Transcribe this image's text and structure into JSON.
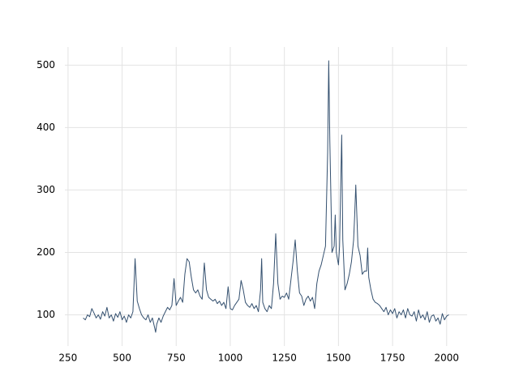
{
  "chart_data": {
    "type": "line",
    "x": [
      320,
      330,
      340,
      350,
      360,
      370,
      380,
      390,
      400,
      410,
      420,
      430,
      440,
      450,
      460,
      470,
      480,
      490,
      500,
      510,
      520,
      530,
      540,
      550,
      560,
      570,
      580,
      590,
      600,
      610,
      620,
      630,
      640,
      650,
      655,
      660,
      670,
      680,
      690,
      700,
      710,
      720,
      730,
      740,
      750,
      760,
      770,
      780,
      790,
      800,
      810,
      820,
      830,
      840,
      850,
      860,
      870,
      880,
      890,
      900,
      910,
      920,
      930,
      940,
      950,
      960,
      970,
      980,
      990,
      1000,
      1010,
      1020,
      1030,
      1040,
      1050,
      1060,
      1070,
      1080,
      1090,
      1100,
      1110,
      1120,
      1130,
      1140,
      1145,
      1150,
      1160,
      1170,
      1180,
      1190,
      1200,
      1210,
      1220,
      1230,
      1240,
      1250,
      1260,
      1270,
      1280,
      1290,
      1300,
      1310,
      1320,
      1330,
      1340,
      1350,
      1360,
      1370,
      1380,
      1390,
      1400,
      1410,
      1420,
      1430,
      1440,
      1450,
      1455,
      1460,
      1470,
      1480,
      1485,
      1490,
      1500,
      1505,
      1510,
      1515,
      1520,
      1530,
      1540,
      1550,
      1560,
      1570,
      1575,
      1580,
      1590,
      1600,
      1610,
      1620,
      1630,
      1635,
      1640,
      1650,
      1660,
      1670,
      1680,
      1690,
      1700,
      1710,
      1720,
      1730,
      1740,
      1750,
      1760,
      1770,
      1780,
      1790,
      1800,
      1810,
      1820,
      1830,
      1840,
      1850,
      1860,
      1870,
      1880,
      1890,
      1900,
      1910,
      1920,
      1930,
      1940,
      1950,
      1960,
      1970,
      1980,
      1990,
      2000,
      2010
    ],
    "series": [
      {
        "color": "#34506f",
        "values": [
          95,
          92,
          100,
          97,
          110,
          103,
          95,
          100,
          93,
          105,
          98,
          112,
          95,
          100,
          90,
          102,
          96,
          105,
          92,
          98,
          88,
          100,
          95,
          105,
          190,
          122,
          110,
          100,
          95,
          92,
          100,
          88,
          95,
          80,
          72,
          85,
          95,
          88,
          98,
          105,
          112,
          108,
          115,
          158,
          115,
          122,
          128,
          120,
          165,
          190,
          185,
          160,
          140,
          135,
          140,
          130,
          125,
          183,
          140,
          128,
          125,
          122,
          125,
          118,
          122,
          115,
          120,
          110,
          145,
          110,
          108,
          115,
          120,
          125,
          155,
          140,
          120,
          115,
          112,
          118,
          110,
          115,
          105,
          140,
          190,
          120,
          110,
          105,
          115,
          110,
          150,
          230,
          150,
          125,
          130,
          128,
          135,
          125,
          155,
          185,
          220,
          170,
          135,
          130,
          115,
          125,
          130,
          122,
          128,
          110,
          150,
          170,
          180,
          195,
          210,
          360,
          507,
          380,
          200,
          210,
          260,
          200,
          180,
          210,
          300,
          388,
          220,
          140,
          150,
          165,
          185,
          220,
          260,
          308,
          210,
          195,
          165,
          170,
          170,
          207,
          160,
          140,
          125,
          120,
          118,
          115,
          110,
          105,
          112,
          100,
          108,
          102,
          110,
          95,
          105,
          100,
          108,
          95,
          110,
          100,
          98,
          105,
          90,
          108,
          95,
          100,
          92,
          105,
          88,
          98,
          100,
          90,
          95,
          85,
          102,
          92,
          98,
          100
        ]
      }
    ],
    "xlim": [
      235.5,
      2094.5
    ],
    "ylim": [
      50,
      529
    ],
    "xticks": [
      250,
      500,
      750,
      1000,
      1250,
      1500,
      1750,
      2000
    ],
    "yticks": [
      100,
      200,
      300,
      400,
      500
    ],
    "grid": true
  }
}
